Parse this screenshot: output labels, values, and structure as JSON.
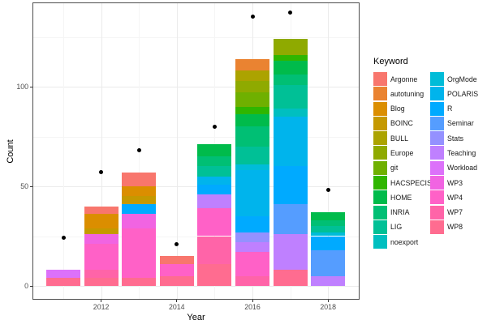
{
  "chart_data": {
    "type": "bar",
    "stacked": true,
    "title": "",
    "xlabel": "Year",
    "ylabel": "Count",
    "legend_title": "Keyword",
    "legend_position": "right",
    "grid": true,
    "x": [
      2011,
      2012,
      2013,
      2014,
      2015,
      2016,
      2017,
      2018
    ],
    "x_tick_labels": [
      "2012",
      "2014",
      "2016",
      "2018"
    ],
    "y_tick_labels": [
      "0",
      "50",
      "100"
    ],
    "y_ticks": [
      0,
      50,
      100
    ],
    "y_minor_gridlines": [
      25,
      75,
      125
    ],
    "x_range": [
      2010.2,
      2018.8
    ],
    "ylim": [
      -7,
      142
    ],
    "keywords": [
      {
        "name": "Argonne",
        "color": "#F8766D"
      },
      {
        "name": "autotuning",
        "color": "#EA8331"
      },
      {
        "name": "Blog",
        "color": "#DB8E00"
      },
      {
        "name": "BOINC",
        "color": "#C59900"
      },
      {
        "name": "BULL",
        "color": "#ACA300"
      },
      {
        "name": "Europe",
        "color": "#8FAA00"
      },
      {
        "name": "git",
        "color": "#6FB000"
      },
      {
        "name": "HACSPECIS",
        "color": "#2FB600"
      },
      {
        "name": "HOME",
        "color": "#00BB4B"
      },
      {
        "name": "INRIA",
        "color": "#00BF74"
      },
      {
        "name": "LIG",
        "color": "#00C096"
      },
      {
        "name": "noexport",
        "color": "#00BFC0"
      },
      {
        "name": "OrgMode",
        "color": "#00BCD8"
      },
      {
        "name": "POLARIS",
        "color": "#00B4EC"
      },
      {
        "name": "R",
        "color": "#00AAFF"
      },
      {
        "name": "Seminar",
        "color": "#559DFF"
      },
      {
        "name": "Stats",
        "color": "#9491FF"
      },
      {
        "name": "Teaching",
        "color": "#BF80FF"
      },
      {
        "name": "Workload",
        "color": "#DC71FA"
      },
      {
        "name": "WP3",
        "color": "#F164E2"
      },
      {
        "name": "WP4",
        "color": "#FF61C7"
      },
      {
        "name": "WP7",
        "color": "#FF64A8"
      },
      {
        "name": "WP8",
        "color": "#FF6C90"
      }
    ],
    "bars": [
      {
        "year": 2011,
        "total": 8,
        "segments": [
          [
            "WP8",
            4
          ],
          [
            "Workload",
            4
          ]
        ]
      },
      {
        "year": 2012,
        "total": 40,
        "segments": [
          [
            "WP8",
            4
          ],
          [
            "WP7",
            4
          ],
          [
            "WP4",
            13
          ],
          [
            "WP3",
            5
          ],
          [
            "BOINC",
            3
          ],
          [
            "Blog",
            7
          ],
          [
            "Argonne",
            4
          ]
        ]
      },
      {
        "year": 2013,
        "total": 57,
        "segments": [
          [
            "WP8",
            4
          ],
          [
            "WP4",
            25
          ],
          [
            "WP3",
            7
          ],
          [
            "R",
            5
          ],
          [
            "BOINC",
            4
          ],
          [
            "Blog",
            5
          ],
          [
            "Argonne",
            7
          ]
        ]
      },
      {
        "year": 2014,
        "total": 15,
        "segments": [
          [
            "WP8",
            5
          ],
          [
            "WP4",
            6
          ],
          [
            "Argonne",
            4
          ]
        ]
      },
      {
        "year": 2015,
        "total": 71,
        "segments": [
          [
            "WP8",
            11
          ],
          [
            "WP7",
            14
          ],
          [
            "WP4",
            14
          ],
          [
            "Teaching",
            7
          ],
          [
            "R",
            5
          ],
          [
            "POLARIS",
            4
          ],
          [
            "LIG",
            5
          ],
          [
            "INRIA",
            5
          ],
          [
            "HOME",
            6
          ]
        ]
      },
      {
        "year": 2016,
        "total": 114,
        "segments": [
          [
            "WP7",
            5
          ],
          [
            "WP4",
            12
          ],
          [
            "Teaching",
            5
          ],
          [
            "Stats",
            5
          ],
          [
            "R",
            8
          ],
          [
            "POLARIS",
            23
          ],
          [
            "OrgMode",
            3
          ],
          [
            "LIG",
            9
          ],
          [
            "INRIA",
            10
          ],
          [
            "HOME",
            6
          ],
          [
            "HACSPECIS",
            4
          ],
          [
            "git",
            7
          ],
          [
            "Europe",
            6
          ],
          [
            "BULL",
            5
          ],
          [
            "autotuning",
            6
          ]
        ]
      },
      {
        "year": 2017,
        "total": 124,
        "segments": [
          [
            "WP8",
            8
          ],
          [
            "Teaching",
            18
          ],
          [
            "Seminar",
            15
          ],
          [
            "R",
            19
          ],
          [
            "POLARIS",
            25
          ],
          [
            "noexport",
            4
          ],
          [
            "LIG",
            12
          ],
          [
            "INRIA",
            5
          ],
          [
            "HOME",
            7
          ],
          [
            "HACSPECIS",
            3
          ],
          [
            "Europe",
            8
          ]
        ]
      },
      {
        "year": 2018,
        "total": 37,
        "segments": [
          [
            "Teaching",
            5
          ],
          [
            "Seminar",
            13
          ],
          [
            "R",
            7
          ],
          [
            "OrgMode",
            2
          ],
          [
            "LIG",
            3
          ],
          [
            "INRIA",
            3
          ],
          [
            "HOME",
            4
          ]
        ]
      }
    ],
    "points": [
      {
        "year": 2011,
        "value": 24
      },
      {
        "year": 2012,
        "value": 57
      },
      {
        "year": 2013,
        "value": 68
      },
      {
        "year": 2014,
        "value": 21
      },
      {
        "year": 2015,
        "value": 80
      },
      {
        "year": 2016,
        "value": 135
      },
      {
        "year": 2017,
        "value": 137
      },
      {
        "year": 2018,
        "value": 48
      }
    ]
  }
}
